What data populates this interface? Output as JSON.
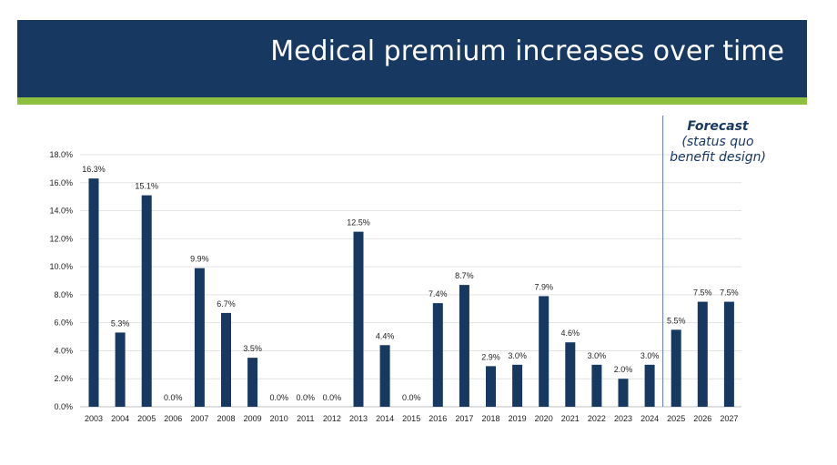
{
  "header": {
    "title": "Medical premium increases over time"
  },
  "forecast_note": {
    "title": "Forecast",
    "line1": "(status quo",
    "line2": "benefit design)"
  },
  "colors": {
    "header_bg": "#173860",
    "accent": "#8fbf3f",
    "bar": "#173860",
    "divider": "#5a7ba8"
  },
  "chart_data": {
    "type": "bar",
    "categories": [
      "2003",
      "2004",
      "2005",
      "2006",
      "2007",
      "2008",
      "2009",
      "2010",
      "2011",
      "2012",
      "2013",
      "2014",
      "2015",
      "2016",
      "2017",
      "2018",
      "2019",
      "2020",
      "2021",
      "2022",
      "2023",
      "2024",
      "2025",
      "2026",
      "2027"
    ],
    "values": [
      16.3,
      5.3,
      15.1,
      0.0,
      9.9,
      6.7,
      3.5,
      0.0,
      0.0,
      0.0,
      12.5,
      4.4,
      0.0,
      7.4,
      8.7,
      2.9,
      3.0,
      7.9,
      4.6,
      3.0,
      2.0,
      3.0,
      5.5,
      7.5,
      7.5
    ],
    "data_labels": [
      "16.3%",
      "5.3%",
      "15.1%",
      "0.0%",
      "9.9%",
      "6.7%",
      "3.5%",
      "0.0%",
      "0.0%",
      "0.0%",
      "12.5%",
      "4.4%",
      "0.0%",
      "7.4%",
      "8.7%",
      "2.9%",
      "3.0%",
      "7.9%",
      "4.6%",
      "3.0%",
      "2.0%",
      "3.0%",
      "5.5%",
      "7.5%",
      "7.5%"
    ],
    "y_ticks": [
      "0.0%",
      "2.0%",
      "4.0%",
      "6.0%",
      "8.0%",
      "10.0%",
      "12.0%",
      "14.0%",
      "16.0%",
      "18.0%"
    ],
    "ylim": [
      0,
      18
    ],
    "grid": true,
    "forecast_start": "2025",
    "title": "",
    "xlabel": "",
    "ylabel": ""
  }
}
